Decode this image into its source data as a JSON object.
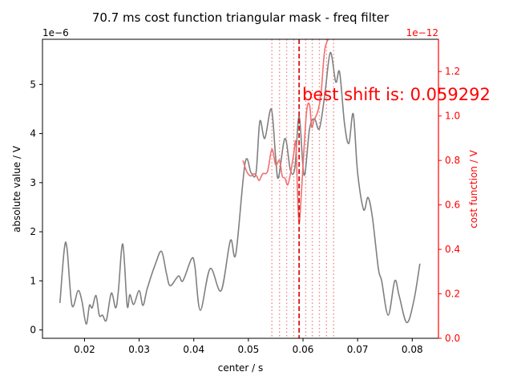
{
  "colors": {
    "gray_curve": "#808080",
    "red_curve": "#f07070",
    "red": "#ff0000",
    "black": "#000000",
    "marker_line": "#e01010",
    "dotted_lines": "#f08888"
  },
  "chart_data": {
    "type": "line",
    "title": "70.7 ms cost function triangular mask - freq filter",
    "xlabel": "center / s",
    "ylabel_left": "absolute value / V",
    "ylabel_right": "cost function / V",
    "left_offset_text": "1e−6",
    "right_offset_text": "1e−12",
    "xlim": [
      0.0123,
      0.0848
    ],
    "ylim_left": [
      -0.17,
      5.92
    ],
    "ylim_right": [
      0,
      1.345
    ],
    "left_scale_note": "left axis values in units of 1e-6 V",
    "right_scale_note": "right axis values in units of 1e-12 V",
    "x_ticks": [
      {
        "v": 0.02,
        "label": "0.02"
      },
      {
        "v": 0.03,
        "label": "0.03"
      },
      {
        "v": 0.04,
        "label": "0.04"
      },
      {
        "v": 0.05,
        "label": "0.05"
      },
      {
        "v": 0.06,
        "label": "0.06"
      },
      {
        "v": 0.07,
        "label": "0.07"
      },
      {
        "v": 0.08,
        "label": "0.08"
      }
    ],
    "y_ticks_left": [
      {
        "v": 0,
        "label": "0"
      },
      {
        "v": 1,
        "label": "1"
      },
      {
        "v": 2,
        "label": "2"
      },
      {
        "v": 3,
        "label": "3"
      },
      {
        "v": 4,
        "label": "4"
      },
      {
        "v": 5,
        "label": "5"
      }
    ],
    "y_ticks_right": [
      {
        "v": 0.0,
        "label": "0.0"
      },
      {
        "v": 0.2,
        "label": "0.2"
      },
      {
        "v": 0.4,
        "label": "0.4"
      },
      {
        "v": 0.6,
        "label": "0.6"
      },
      {
        "v": 0.8,
        "label": "0.8"
      },
      {
        "v": 1.0,
        "label": "1.0"
      },
      {
        "v": 1.2,
        "label": "1.2"
      }
    ],
    "series": [
      {
        "axis": "left",
        "color": "#808080",
        "points": [
          [
            0.0155,
            0.55
          ],
          [
            0.0163,
            1.65
          ],
          [
            0.0168,
            1.65
          ],
          [
            0.0177,
            0.5
          ],
          [
            0.0188,
            0.8
          ],
          [
            0.0195,
            0.6
          ],
          [
            0.0203,
            0.12
          ],
          [
            0.0209,
            0.5
          ],
          [
            0.0214,
            0.45
          ],
          [
            0.0221,
            0.7
          ],
          [
            0.0227,
            0.3
          ],
          [
            0.0233,
            0.3
          ],
          [
            0.024,
            0.2
          ],
          [
            0.0249,
            0.75
          ],
          [
            0.0257,
            0.45
          ],
          [
            0.0262,
            0.8
          ],
          [
            0.027,
            1.75
          ],
          [
            0.0278,
            0.5
          ],
          [
            0.0283,
            0.72
          ],
          [
            0.029,
            0.52
          ],
          [
            0.03,
            0.8
          ],
          [
            0.0307,
            0.5
          ],
          [
            0.0315,
            0.85
          ],
          [
            0.033,
            1.35
          ],
          [
            0.0341,
            1.6
          ],
          [
            0.035,
            1.15
          ],
          [
            0.0357,
            0.9
          ],
          [
            0.0372,
            1.1
          ],
          [
            0.038,
            1.0
          ],
          [
            0.0396,
            1.45
          ],
          [
            0.0402,
            1.3
          ],
          [
            0.0412,
            0.4
          ],
          [
            0.043,
            1.25
          ],
          [
            0.045,
            0.8
          ],
          [
            0.0467,
            1.82
          ],
          [
            0.0477,
            1.55
          ],
          [
            0.0494,
            3.4
          ],
          [
            0.0505,
            3.2
          ],
          [
            0.0514,
            3.2
          ],
          [
            0.0521,
            4.25
          ],
          [
            0.053,
            3.9
          ],
          [
            0.0542,
            4.5
          ],
          [
            0.055,
            3.5
          ],
          [
            0.0555,
            3.1
          ],
          [
            0.0567,
            3.9
          ],
          [
            0.0577,
            3.25
          ],
          [
            0.0585,
            3.3
          ],
          [
            0.0593,
            4.35
          ],
          [
            0.0602,
            3.15
          ],
          [
            0.0612,
            4.1
          ],
          [
            0.0621,
            4.3
          ],
          [
            0.063,
            4.1
          ],
          [
            0.064,
            4.8
          ],
          [
            0.065,
            5.65
          ],
          [
            0.066,
            5.05
          ],
          [
            0.0667,
            5.25
          ],
          [
            0.0676,
            4.2
          ],
          [
            0.0684,
            3.8
          ],
          [
            0.0692,
            4.4
          ],
          [
            0.07,
            3.2
          ],
          [
            0.0711,
            2.45
          ],
          [
            0.0719,
            2.7
          ],
          [
            0.0727,
            2.3
          ],
          [
            0.0738,
            1.25
          ],
          [
            0.0744,
            1.0
          ],
          [
            0.0756,
            0.3
          ],
          [
            0.0768,
            1.0
          ],
          [
            0.0776,
            0.7
          ],
          [
            0.079,
            0.15
          ],
          [
            0.0803,
            0.6
          ],
          [
            0.0814,
            1.35
          ]
        ]
      },
      {
        "axis": "right",
        "color": "#f07070",
        "points": [
          [
            0.049,
            0.8
          ],
          [
            0.0497,
            0.75
          ],
          [
            0.0504,
            0.73
          ],
          [
            0.051,
            0.74
          ],
          [
            0.0515,
            0.73
          ],
          [
            0.052,
            0.71
          ],
          [
            0.0526,
            0.74
          ],
          [
            0.0535,
            0.75
          ],
          [
            0.0543,
            0.85
          ],
          [
            0.055,
            0.78
          ],
          [
            0.0557,
            0.8
          ],
          [
            0.0562,
            0.73
          ],
          [
            0.0567,
            0.72
          ],
          [
            0.0572,
            0.69
          ],
          [
            0.0577,
            0.74
          ],
          [
            0.0583,
            0.83
          ],
          [
            0.0587,
            0.88
          ],
          [
            0.059,
            0.65
          ],
          [
            0.0593,
            0.52
          ],
          [
            0.0597,
            0.65
          ],
          [
            0.0602,
            0.86
          ],
          [
            0.0607,
            1.03
          ],
          [
            0.0612,
            1.05
          ],
          [
            0.0616,
            0.95
          ],
          [
            0.062,
            0.98
          ],
          [
            0.0627,
            1.02
          ],
          [
            0.0633,
            1.1
          ],
          [
            0.064,
            1.3
          ],
          [
            0.065,
            1.36
          ]
        ]
      }
    ],
    "vlines_dotted": [
      0.0543,
      0.0557,
      0.057,
      0.0583,
      0.0605,
      0.0617,
      0.063,
      0.0643,
      0.0656
    ],
    "vline_dashed": 0.05929,
    "annotation": "best shift is: 0.059292",
    "grid": false
  }
}
